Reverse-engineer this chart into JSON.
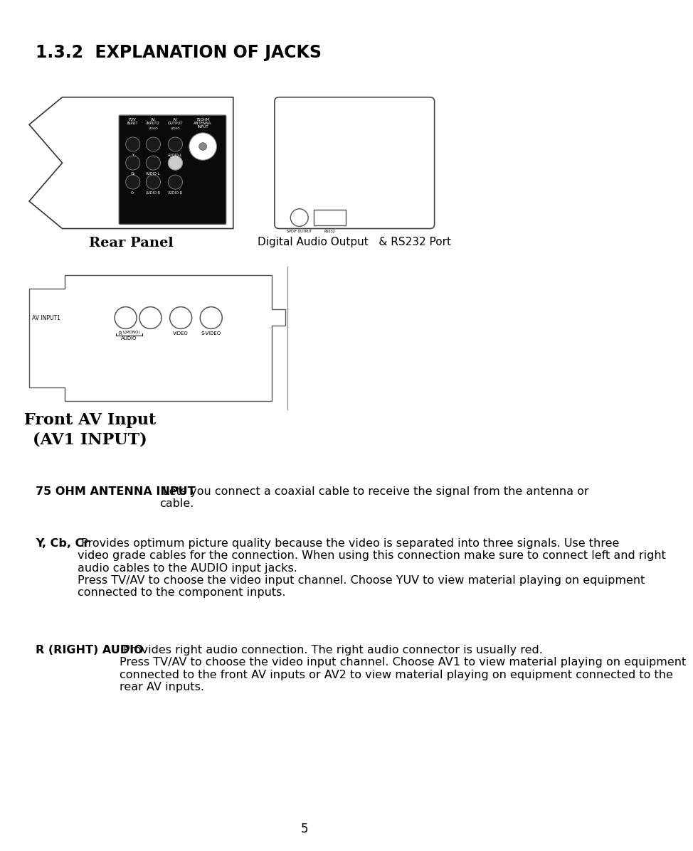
{
  "title": "1.3.2  EXPLANATION OF JACKS",
  "bg_color": "#ffffff",
  "text_color": "#000000",
  "rear_panel_label": "Rear Panel",
  "digital_label": "Digital Audio Output   & RS232 Port",
  "front_av_label": "Front AV Input\n(AV1 INPUT)",
  "page_number": "5",
  "para1_bold": "75 OHM ANTENNA INPUT",
  "para1_rest": " Lets you connect a coaxial cable to receive the signal from the antenna or\ncable.",
  "para2_bold": "Y, Cb, Cr",
  "para2_rest": " Provides optimum picture quality because the video is separated into three signals. Use three\nvideo grade cables for the connection. When using this connection make sure to connect left and right\naudio cables to the AUDIO input jacks.\nPress TV/AV to choose the video input channel. Choose YUV to view material playing on equipment\nconnected to the component inputs.",
  "para3_bold": "R (RIGHT) AUDIO",
  "para3_rest": " Provides right audio connection. The right audio connector is usually red.\nPress TV/AV to choose the video input channel. Choose AV1 to view material playing on equipment\nconnected to the front AV inputs or AV2 to view material playing on equipment connected to the\nrear AV inputs."
}
